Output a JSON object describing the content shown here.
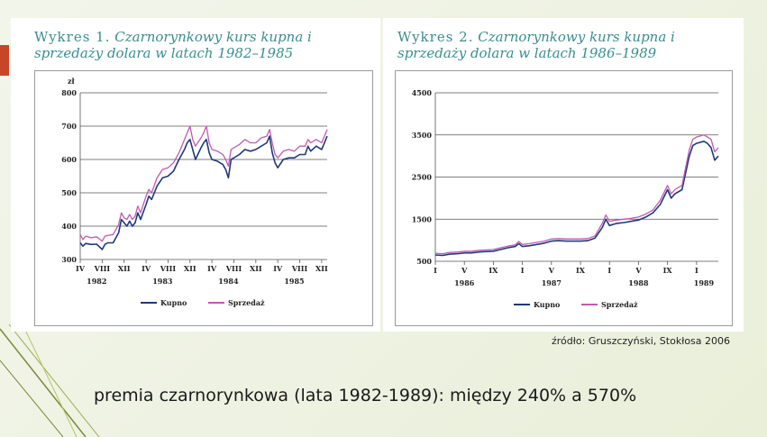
{
  "slide": {
    "source_note": "źródło: Gruszczyński, Stokłosa 2006",
    "caption": "premia czarnorynkowa (lata 1982-1989): między 240% a 570%",
    "colors": {
      "title": "#3a8d90",
      "accent": "#c8452a",
      "kupno": "#1f3a7a",
      "sprzedaz": "#c159b5"
    }
  },
  "chart_data": [
    {
      "type": "line",
      "title_lead": "Wykres 1.",
      "title_rest": " Czarnorynkowy kurs kupna i sprzedaży dolara w latach 1982–1985",
      "ylabel": "zł",
      "ylim": [
        300,
        800
      ],
      "yticks": [
        300,
        400,
        500,
        600,
        700,
        800
      ],
      "xlim": [
        0,
        45
      ],
      "month_ticks": [
        {
          "x": 0,
          "label": "IV"
        },
        {
          "x": 4,
          "label": "VIII"
        },
        {
          "x": 8,
          "label": "XII"
        },
        {
          "x": 12,
          "label": "IV"
        },
        {
          "x": 16,
          "label": "VIII"
        },
        {
          "x": 20,
          "label": "XII"
        },
        {
          "x": 24,
          "label": "IV"
        },
        {
          "x": 28,
          "label": "VIII"
        },
        {
          "x": 32,
          "label": "XII"
        },
        {
          "x": 36,
          "label": "IV"
        },
        {
          "x": 40,
          "label": "VIII"
        },
        {
          "x": 44,
          "label": "XII"
        }
      ],
      "year_labels": [
        {
          "x": 3,
          "label": "1982"
        },
        {
          "x": 15,
          "label": "1983"
        },
        {
          "x": 27,
          "label": "1984"
        },
        {
          "x": 39,
          "label": "1985"
        }
      ],
      "legend": [
        "Kupno",
        "Sprzedaż"
      ],
      "legend_position": "bottom",
      "series": [
        {
          "name": "Kupno",
          "x": [
            0,
            0.5,
            1,
            2,
            3,
            4,
            4.5,
            5,
            6,
            7,
            7.5,
            8,
            8.5,
            9,
            9.5,
            10,
            10.5,
            11,
            12,
            12.5,
            13,
            14,
            15,
            16,
            17,
            18,
            19,
            19.5,
            20,
            20.5,
            21,
            22,
            22.5,
            23,
            23.5,
            24,
            25,
            26,
            26.5,
            27,
            27.5,
            28,
            29,
            30,
            31,
            32,
            33,
            34,
            34.5,
            35,
            35.5,
            36,
            37,
            38,
            39,
            40,
            41,
            41.5,
            42,
            43,
            44,
            44.5,
            45
          ],
          "y": [
            350,
            340,
            348,
            345,
            346,
            330,
            345,
            350,
            350,
            380,
            420,
            410,
            400,
            415,
            400,
            410,
            440,
            420,
            465,
            490,
            480,
            520,
            545,
            550,
            565,
            600,
            630,
            650,
            660,
            630,
            600,
            635,
            650,
            660,
            620,
            600,
            595,
            585,
            570,
            545,
            600,
            605,
            615,
            630,
            625,
            630,
            640,
            650,
            670,
            620,
            590,
            575,
            600,
            605,
            605,
            615,
            615,
            640,
            625,
            640,
            630,
            650,
            670
          ]
        },
        {
          "name": "Sprzedaż",
          "x": [
            0,
            0.5,
            1,
            2,
            3,
            4,
            4.5,
            5,
            6,
            7,
            7.5,
            8,
            8.5,
            9,
            9.5,
            10,
            10.5,
            11,
            12,
            12.5,
            13,
            14,
            15,
            16,
            17,
            18,
            19,
            19.5,
            20,
            20.5,
            21,
            22,
            22.5,
            23,
            23.5,
            24,
            25,
            26,
            26.5,
            27,
            27.5,
            28,
            29,
            30,
            31,
            32,
            33,
            34,
            34.5,
            35,
            35.5,
            36,
            37,
            38,
            39,
            40,
            41,
            41.5,
            42,
            43,
            44,
            44.5,
            45
          ],
          "y": [
            375,
            360,
            370,
            365,
            368,
            355,
            370,
            372,
            375,
            405,
            440,
            425,
            420,
            435,
            420,
            430,
            460,
            440,
            490,
            510,
            500,
            545,
            570,
            575,
            590,
            620,
            660,
            680,
            700,
            660,
            640,
            665,
            680,
            700,
            650,
            630,
            625,
            615,
            600,
            580,
            630,
            635,
            645,
            660,
            650,
            650,
            665,
            670,
            690,
            650,
            615,
            605,
            625,
            630,
            625,
            640,
            640,
            660,
            650,
            660,
            650,
            670,
            690
          ]
        }
      ]
    },
    {
      "type": "line",
      "title_lead": "Wykres 2.",
      "title_rest": " Czarnorynkowy kurs kupna i sprzedaży dolara w latach 1986–1989",
      "ylabel": "",
      "ylim": [
        500,
        4500
      ],
      "yticks": [
        500,
        1500,
        2500,
        3500,
        4500
      ],
      "xlim": [
        0,
        39
      ],
      "month_ticks": [
        {
          "x": 0,
          "label": "I"
        },
        {
          "x": 4,
          "label": "V"
        },
        {
          "x": 8,
          "label": "IX"
        },
        {
          "x": 12,
          "label": "I"
        },
        {
          "x": 16,
          "label": "V"
        },
        {
          "x": 20,
          "label": "IX"
        },
        {
          "x": 24,
          "label": "I"
        },
        {
          "x": 28,
          "label": "V"
        },
        {
          "x": 32,
          "label": "IX"
        },
        {
          "x": 36,
          "label": "I"
        }
      ],
      "year_labels": [
        {
          "x": 4,
          "label": "1986"
        },
        {
          "x": 16,
          "label": "1987"
        },
        {
          "x": 28,
          "label": "1988"
        },
        {
          "x": 37,
          "label": "1989"
        }
      ],
      "legend": [
        "Kupno",
        "Sprzedaż"
      ],
      "legend_position": "bottom",
      "series": [
        {
          "name": "Kupno",
          "x": [
            0,
            1,
            2,
            3,
            4,
            5,
            6,
            7,
            8,
            9,
            10,
            11,
            11.5,
            12,
            13,
            14,
            15,
            16,
            17,
            18,
            19,
            20,
            21,
            22,
            23,
            23.5,
            24,
            25,
            26,
            27,
            28,
            29,
            30,
            31,
            32,
            32.5,
            33,
            34,
            35,
            35.5,
            36,
            37,
            37.5,
            38,
            38.5,
            39
          ],
          "y": [
            650,
            640,
            670,
            680,
            700,
            700,
            720,
            730,
            740,
            780,
            820,
            850,
            920,
            850,
            870,
            900,
            930,
            980,
            990,
            980,
            980,
            980,
            990,
            1050,
            1300,
            1500,
            1350,
            1400,
            1420,
            1450,
            1480,
            1550,
            1650,
            1850,
            2200,
            2000,
            2100,
            2200,
            3000,
            3250,
            3300,
            3350,
            3300,
            3200,
            2900,
            3000
          ]
        },
        {
          "name": "Sprzedaż",
          "x": [
            0,
            1,
            2,
            3,
            4,
            5,
            6,
            7,
            8,
            9,
            10,
            11,
            11.5,
            12,
            13,
            14,
            15,
            16,
            17,
            18,
            19,
            20,
            21,
            22,
            23,
            23.5,
            24,
            25,
            26,
            27,
            28,
            29,
            30,
            31,
            32,
            32.5,
            33,
            34,
            35,
            35.5,
            36,
            37,
            37.5,
            38,
            38.5,
            39
          ],
          "y": [
            690,
            680,
            710,
            720,
            740,
            740,
            760,
            770,
            780,
            820,
            860,
            890,
            970,
            900,
            920,
            950,
            980,
            1030,
            1040,
            1030,
            1030,
            1030,
            1040,
            1100,
            1400,
            1600,
            1450,
            1480,
            1500,
            1520,
            1550,
            1620,
            1720,
            1950,
            2300,
            2100,
            2200,
            2300,
            3150,
            3400,
            3450,
            3500,
            3450,
            3400,
            3100,
            3200
          ]
        }
      ]
    }
  ]
}
